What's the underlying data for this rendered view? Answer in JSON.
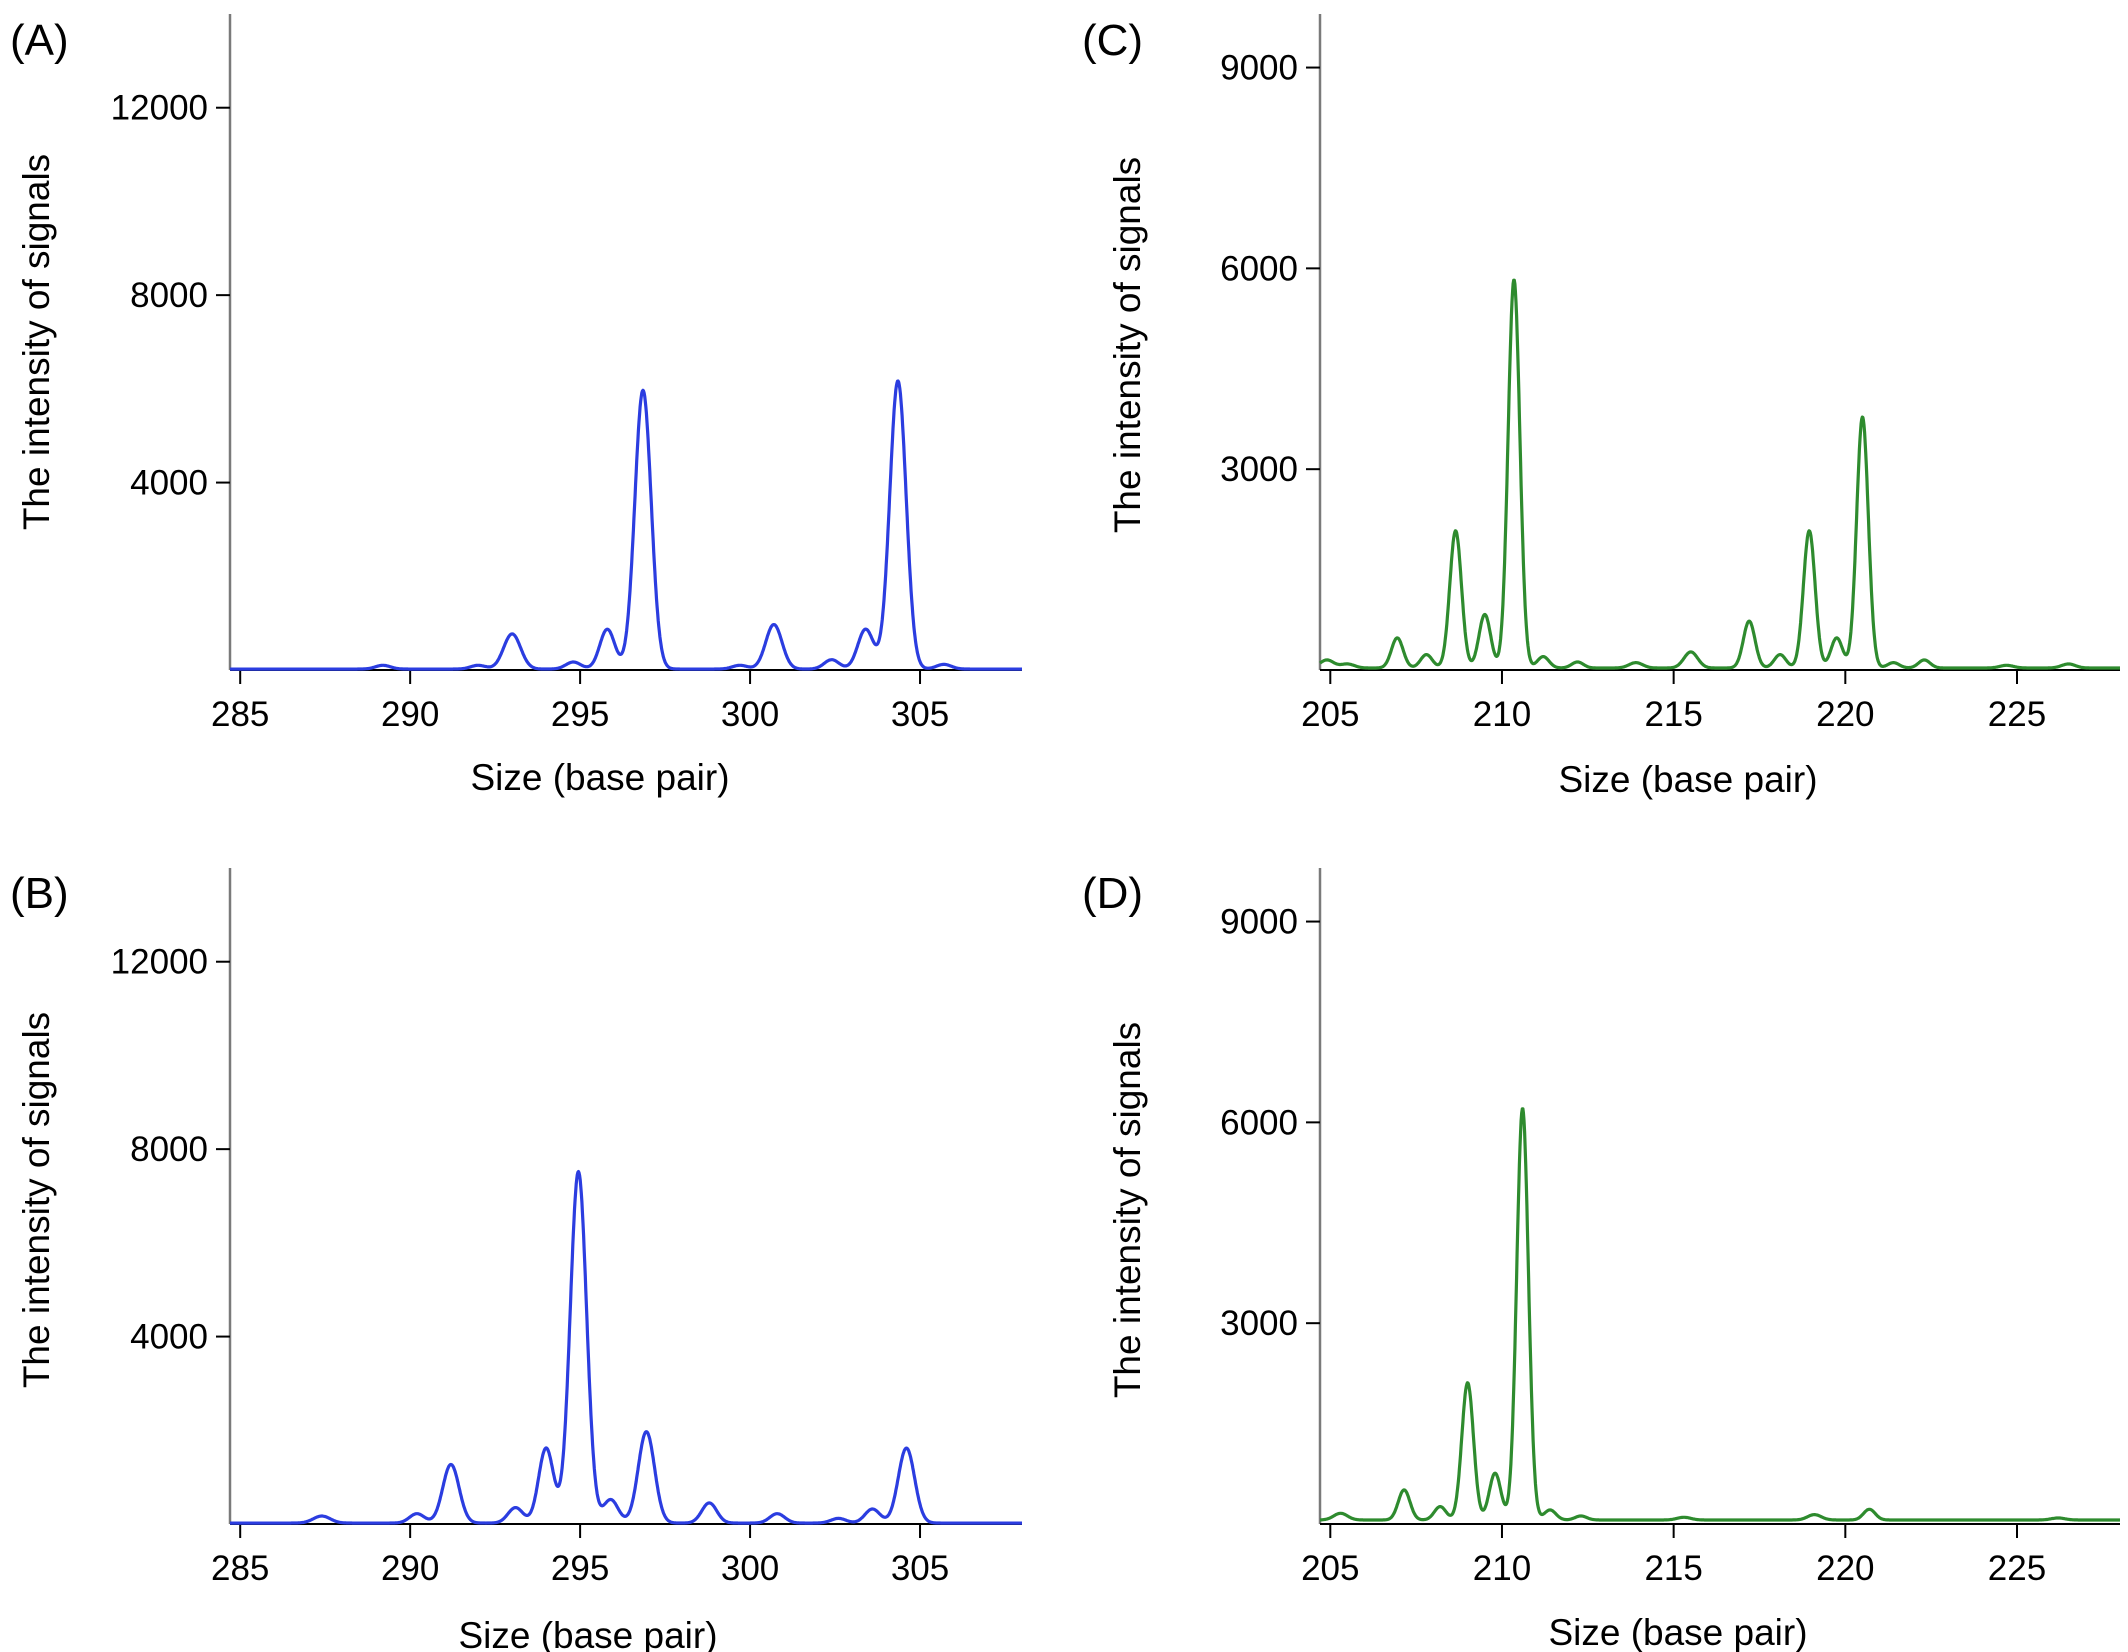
{
  "chart_data": [
    {
      "id": "A",
      "type": "line",
      "panel_label": "(A)",
      "xlabel": "Size (base pair)",
      "ylabel": "The intensity of signals",
      "xlim": [
        284.7,
        308.0
      ],
      "ylim": [
        0,
        14000
      ],
      "xticks": [
        285,
        290,
        295,
        300,
        305
      ],
      "yticks": [
        4000,
        8000,
        12000
      ],
      "color": "#2b3de0",
      "baseline": 20,
      "peaks": [
        [
          289.2,
          80,
          0.22
        ],
        [
          292.0,
          80,
          0.22
        ],
        [
          293.0,
          750,
          0.25
        ],
        [
          294.8,
          150,
          0.22
        ],
        [
          295.8,
          850,
          0.22
        ],
        [
          296.85,
          5950,
          0.24
        ],
        [
          299.7,
          80,
          0.22
        ],
        [
          300.7,
          950,
          0.24
        ],
        [
          302.4,
          200,
          0.22
        ],
        [
          303.4,
          850,
          0.23
        ],
        [
          304.35,
          6150,
          0.24
        ],
        [
          305.7,
          100,
          0.22
        ]
      ]
    },
    {
      "id": "B",
      "type": "line",
      "panel_label": "(B)",
      "xlabel": "Size (base pair)",
      "ylabel": "The intensity of signals",
      "xlim": [
        284.7,
        308.0
      ],
      "ylim": [
        0,
        14000
      ],
      "xticks": [
        285,
        290,
        295,
        300,
        305
      ],
      "yticks": [
        4000,
        8000,
        12000
      ],
      "color": "#2b3de0",
      "baseline": 20,
      "peaks": [
        [
          287.4,
          150,
          0.25
        ],
        [
          290.2,
          200,
          0.22
        ],
        [
          291.2,
          1250,
          0.24
        ],
        [
          293.1,
          330,
          0.22
        ],
        [
          294.0,
          1600,
          0.22
        ],
        [
          294.95,
          7500,
          0.24
        ],
        [
          295.9,
          500,
          0.22
        ],
        [
          296.95,
          1950,
          0.24
        ],
        [
          298.8,
          430,
          0.22
        ],
        [
          300.8,
          200,
          0.22
        ],
        [
          302.6,
          100,
          0.22
        ],
        [
          303.6,
          300,
          0.22
        ],
        [
          304.6,
          1600,
          0.24
        ]
      ]
    },
    {
      "id": "C",
      "type": "line",
      "panel_label": "(C)",
      "xlabel": "Size (base pair)",
      "ylabel": "The intensity of signals",
      "xlim": [
        204.7,
        228.0
      ],
      "ylim": [
        0,
        9800
      ],
      "xticks": [
        205,
        210,
        215,
        220,
        225
      ],
      "yticks": [
        3000,
        6000,
        9000
      ],
      "color": "#2e8b2e",
      "baseline": 30,
      "peaks": [
        [
          204.9,
          120,
          0.2
        ],
        [
          205.5,
          60,
          0.2
        ],
        [
          206.95,
          450,
          0.17
        ],
        [
          207.8,
          200,
          0.17
        ],
        [
          208.65,
          2050,
          0.17
        ],
        [
          209.5,
          800,
          0.17
        ],
        [
          210.35,
          5800,
          0.17
        ],
        [
          211.2,
          170,
          0.17
        ],
        [
          212.2,
          90,
          0.17
        ],
        [
          213.9,
          80,
          0.2
        ],
        [
          215.5,
          240,
          0.2
        ],
        [
          217.2,
          700,
          0.17
        ],
        [
          218.1,
          200,
          0.17
        ],
        [
          218.95,
          2050,
          0.17
        ],
        [
          219.75,
          450,
          0.17
        ],
        [
          220.5,
          3750,
          0.17
        ],
        [
          221.4,
          80,
          0.17
        ],
        [
          222.3,
          120,
          0.17
        ],
        [
          224.7,
          40,
          0.2
        ],
        [
          226.5,
          60,
          0.2
        ]
      ]
    },
    {
      "id": "D",
      "type": "line",
      "panel_label": "(D)",
      "xlabel": "Size (base pair)",
      "ylabel": "The intensity of signals",
      "xlim": [
        204.7,
        228.0
      ],
      "ylim": [
        0,
        9800
      ],
      "xticks": [
        205,
        210,
        215,
        220,
        225
      ],
      "yticks": [
        3000,
        6000,
        9000
      ],
      "color": "#2e8b2e",
      "baseline": 60,
      "peaks": [
        [
          205.3,
          100,
          0.2
        ],
        [
          207.15,
          450,
          0.17
        ],
        [
          208.2,
          200,
          0.17
        ],
        [
          209.0,
          2050,
          0.17
        ],
        [
          209.8,
          700,
          0.17
        ],
        [
          210.6,
          6150,
          0.17
        ],
        [
          211.4,
          150,
          0.17
        ],
        [
          212.3,
          60,
          0.17
        ],
        [
          215.3,
          40,
          0.2
        ],
        [
          219.1,
          80,
          0.2
        ],
        [
          220.7,
          160,
          0.17
        ],
        [
          226.2,
          30,
          0.2
        ]
      ]
    }
  ]
}
